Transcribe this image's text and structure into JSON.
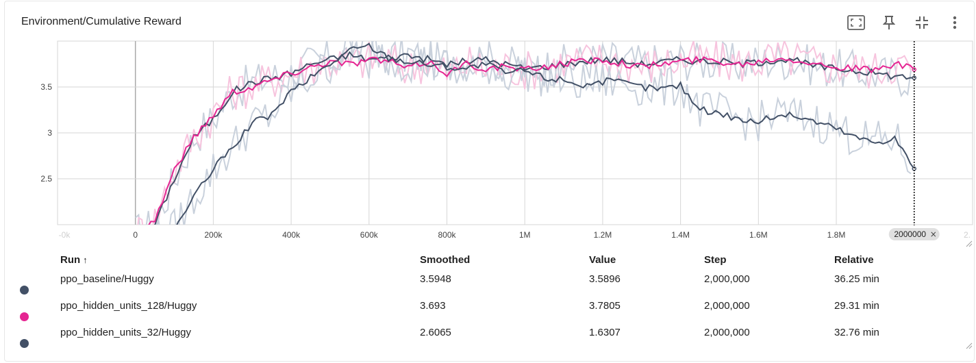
{
  "card": {
    "title": "Environment/Cumulative Reward"
  },
  "toolbar": {
    "fit_icon": "fit-domain-icon",
    "pin_icon": "pin-icon",
    "collapse_icon": "collapse-icon",
    "more_icon": "more-vert-icon"
  },
  "colors": {
    "dark_series": "#425066",
    "dark_raw": "#c9d1dc",
    "pink_series": "#e52592",
    "pink_raw": "#f7c4de",
    "grid": "#d6d6d6",
    "zero_line": "#aaaaaa"
  },
  "chart_data": {
    "type": "line",
    "title": "",
    "x_ticks": [
      "0",
      "200k",
      "400k",
      "600k",
      "800k",
      "1M",
      "1.2M",
      "1.4M",
      "1.6M",
      "1.8M"
    ],
    "x_tick_values": [
      0,
      200000,
      400000,
      600000,
      800000,
      1000000,
      1200000,
      1400000,
      1600000,
      1800000
    ],
    "x_edge_labels": [
      "-0k",
      "2."
    ],
    "y_ticks": [
      "2.5",
      "3",
      "3.5"
    ],
    "y_tick_values": [
      2.5,
      3.0,
      3.5
    ],
    "xlim": [
      -200000,
      2150000
    ],
    "ylim": [
      2.0,
      4.0
    ],
    "grid": true,
    "hover_step_label": "2000000",
    "hover_step_value": 2000000,
    "series": [
      {
        "name": "ppo_baseline/Huggy",
        "color": "#425066",
        "x": [
          0,
          50000,
          100000,
          150000,
          200000,
          250000,
          300000,
          350000,
          400000,
          450000,
          500000,
          550000,
          600000,
          650000,
          700000,
          750000,
          800000,
          850000,
          900000,
          950000,
          1000000,
          1050000,
          1100000,
          1150000,
          1200000,
          1250000,
          1300000,
          1350000,
          1400000,
          1450000,
          1500000,
          1550000,
          1600000,
          1650000,
          1700000,
          1750000,
          1800000,
          1850000,
          1900000,
          1950000,
          2000000
        ],
        "y": [
          1.9,
          2.0,
          2.5,
          2.95,
          3.15,
          3.45,
          3.55,
          3.6,
          3.65,
          3.75,
          3.8,
          3.85,
          3.8,
          3.82,
          3.85,
          3.8,
          3.75,
          3.78,
          3.8,
          3.75,
          3.7,
          3.72,
          3.75,
          3.78,
          3.8,
          3.78,
          3.75,
          3.77,
          3.8,
          3.78,
          3.78,
          3.75,
          3.77,
          3.8,
          3.78,
          3.72,
          3.7,
          3.68,
          3.65,
          3.62,
          3.6
        ]
      },
      {
        "name": "ppo_hidden_units_128/Huggy",
        "color": "#e52592",
        "x": [
          0,
          50000,
          100000,
          150000,
          200000,
          250000,
          300000,
          350000,
          400000,
          450000,
          500000,
          550000,
          600000,
          650000,
          700000,
          750000,
          800000,
          850000,
          900000,
          950000,
          1000000,
          1050000,
          1100000,
          1150000,
          1200000,
          1250000,
          1300000,
          1350000,
          1400000,
          1450000,
          1500000,
          1550000,
          1600000,
          1650000,
          1700000,
          1750000,
          1800000,
          1850000,
          1900000,
          1950000,
          2000000
        ],
        "y": [
          1.9,
          2.05,
          2.6,
          2.95,
          3.2,
          3.45,
          3.5,
          3.58,
          3.65,
          3.72,
          3.78,
          3.75,
          3.8,
          3.78,
          3.7,
          3.78,
          3.65,
          3.75,
          3.7,
          3.72,
          3.68,
          3.72,
          3.76,
          3.78,
          3.8,
          3.76,
          3.72,
          3.75,
          3.78,
          3.8,
          3.78,
          3.75,
          3.78,
          3.82,
          3.8,
          3.75,
          3.72,
          3.7,
          3.68,
          3.75,
          3.69
        ]
      },
      {
        "name": "ppo_hidden_units_32/Huggy",
        "color": "#425066",
        "x": [
          0,
          50000,
          100000,
          150000,
          200000,
          250000,
          300000,
          350000,
          400000,
          450000,
          500000,
          550000,
          600000,
          650000,
          700000,
          750000,
          800000,
          850000,
          900000,
          950000,
          1000000,
          1050000,
          1100000,
          1150000,
          1200000,
          1250000,
          1300000,
          1350000,
          1400000,
          1450000,
          1500000,
          1550000,
          1600000,
          1650000,
          1700000,
          1750000,
          1800000,
          1850000,
          1900000,
          1950000,
          2000000
        ],
        "y": [
          1.8,
          1.85,
          1.95,
          2.3,
          2.6,
          2.85,
          3.1,
          3.2,
          3.45,
          3.6,
          3.75,
          3.9,
          3.95,
          3.82,
          3.78,
          3.75,
          3.72,
          3.7,
          3.75,
          3.65,
          3.68,
          3.6,
          3.58,
          3.52,
          3.56,
          3.55,
          3.5,
          3.48,
          3.52,
          3.25,
          3.22,
          3.15,
          3.12,
          3.2,
          3.18,
          3.12,
          3.05,
          2.95,
          2.9,
          2.95,
          2.61
        ]
      }
    ]
  },
  "table": {
    "columns": {
      "run": "Run",
      "sort_arrow": "↑",
      "smoothed": "Smoothed",
      "value": "Value",
      "step": "Step",
      "relative": "Relative"
    },
    "rows": [
      {
        "name": "ppo_baseline/Huggy",
        "color": "#425066",
        "smoothed": "3.5948",
        "value": "3.5896",
        "step": "2,000,000",
        "relative": "36.25 min"
      },
      {
        "name": "ppo_hidden_units_128/Huggy",
        "color": "#e52592",
        "smoothed": "3.693",
        "value": "3.7805",
        "step": "2,000,000",
        "relative": "29.31 min"
      },
      {
        "name": "ppo_hidden_units_32/Huggy",
        "color": "#425066",
        "smoothed": "2.6065",
        "value": "1.6307",
        "step": "2,000,000",
        "relative": "32.76 min"
      }
    ]
  }
}
